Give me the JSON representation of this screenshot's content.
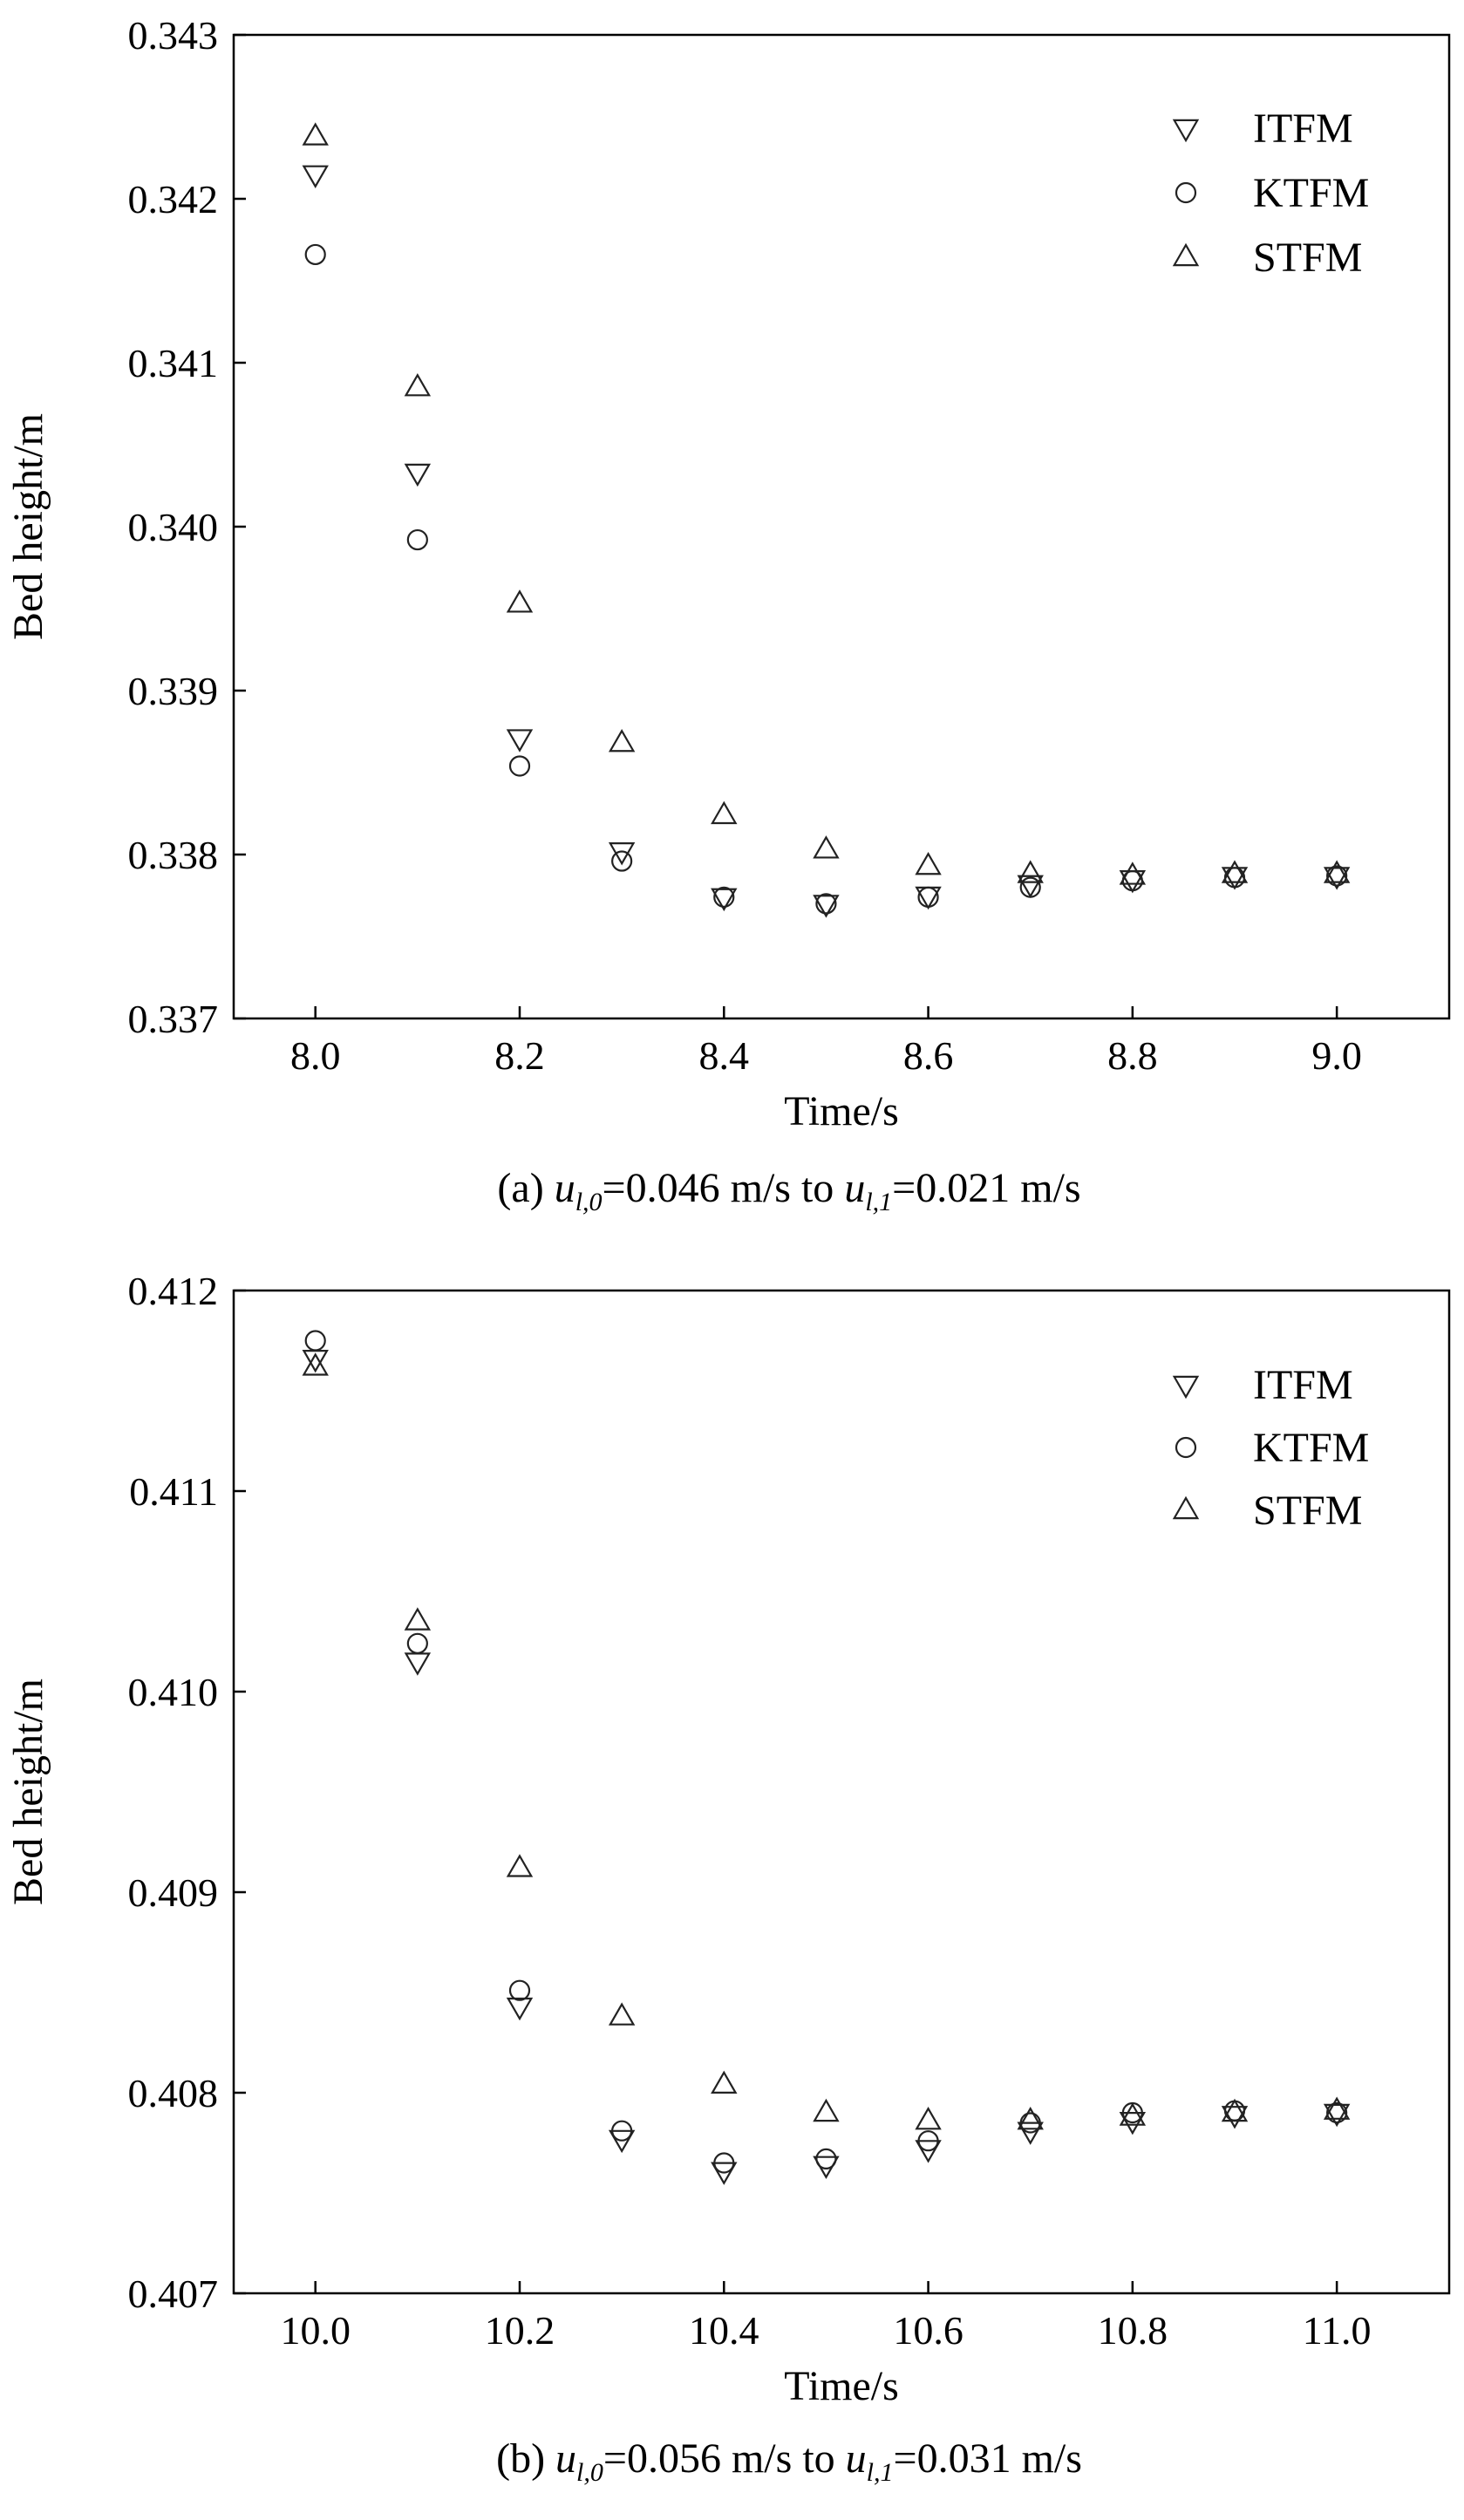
{
  "chart_data": [
    {
      "type": "scatter",
      "id": "a",
      "xlabel": "Time/s",
      "ylabel": "Bed height/m",
      "xlim": [
        7.92,
        9.11
      ],
      "ylim": [
        0.337,
        0.343
      ],
      "xticks": [
        "8.0",
        "8.2",
        "8.4",
        "8.6",
        "8.8",
        "9.0"
      ],
      "yticks": [
        "0.337",
        "0.338",
        "0.339",
        "0.340",
        "0.341",
        "0.342",
        "0.343"
      ],
      "caption": {
        "prefix": "(a) ",
        "v1": "u",
        "s1": "l,0",
        "mid": "=0.046 m/s to ",
        "v2": "u",
        "s2": "l,1",
        "suffix": "=0.021 m/s"
      },
      "legend_position": "top-right",
      "grid": false,
      "x": [
        8.0,
        8.1,
        8.2,
        8.3,
        8.4,
        8.5,
        8.6,
        8.7,
        8.8,
        8.9,
        9.0
      ],
      "series": [
        {
          "name": "ITFM",
          "marker": "triangle-down",
          "values": [
            0.34215,
            0.34033,
            0.33871,
            0.33802,
            0.33774,
            0.3377,
            0.33775,
            0.33782,
            0.33785,
            0.33787,
            0.33787
          ]
        },
        {
          "name": "KTFM",
          "marker": "circle",
          "values": [
            0.34166,
            0.33992,
            0.33854,
            0.33796,
            0.33774,
            0.3377,
            0.33774,
            0.3378,
            0.33784,
            0.33786,
            0.33787
          ]
        },
        {
          "name": "STFM",
          "marker": "triangle-up",
          "values": [
            0.34238,
            0.34085,
            0.33953,
            0.33868,
            0.33824,
            0.33803,
            0.33793,
            0.33788,
            0.33787,
            0.33788,
            0.33788
          ]
        }
      ]
    },
    {
      "type": "scatter",
      "id": "b",
      "xlabel": "Time/s",
      "ylabel": "Bed height/m",
      "xlim": [
        9.92,
        11.11
      ],
      "ylim": [
        0.407,
        0.412
      ],
      "xticks": [
        "10.0",
        "10.2",
        "10.4",
        "10.6",
        "10.8",
        "11.0"
      ],
      "yticks": [
        "0.407",
        "0.408",
        "0.409",
        "0.410",
        "0.411",
        "0.412"
      ],
      "caption": {
        "prefix": "(b) ",
        "v1": "u",
        "s1": "l,0",
        "mid": "=0.056 m/s to ",
        "v2": "u",
        "s2": "l,1",
        "suffix": "=0.031 m/s"
      },
      "legend_position": "top-right",
      "grid": false,
      "x": [
        10.0,
        10.1,
        10.2,
        10.3,
        10.4,
        10.5,
        10.6,
        10.7,
        10.8,
        10.9,
        11.0
      ],
      "series": [
        {
          "name": "ITFM",
          "marker": "triangle-down",
          "values": [
            0.41166,
            0.41015,
            0.40843,
            0.40777,
            0.40761,
            0.40764,
            0.40772,
            0.40781,
            0.40786,
            0.40789,
            0.4079
          ]
        },
        {
          "name": "KTFM",
          "marker": "circle",
          "values": [
            0.41175,
            0.41024,
            0.40851,
            0.40781,
            0.40765,
            0.40767,
            0.40776,
            0.40785,
            0.4079,
            0.40791,
            0.4079
          ]
        },
        {
          "name": "STFM",
          "marker": "triangle-up",
          "values": [
            0.41162,
            0.41035,
            0.40912,
            0.40838,
            0.40804,
            0.4079,
            0.40786,
            0.40786,
            0.40788,
            0.4079,
            0.40791
          ]
        }
      ]
    }
  ]
}
